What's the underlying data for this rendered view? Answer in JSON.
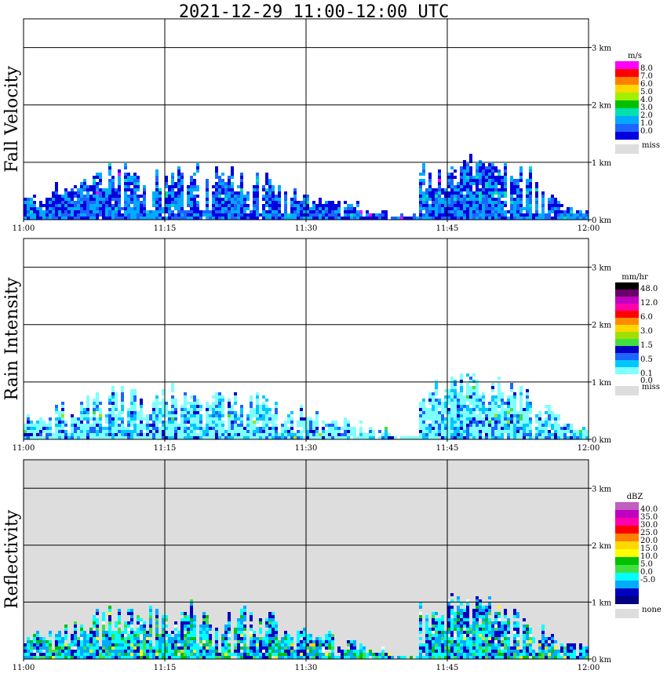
{
  "title": "2021-12-29   11:00-12:00 UTC",
  "chart_data": [
    {
      "type": "heatmap",
      "ylabel": "Fall Velocity",
      "x_ticks": [
        "11:00",
        "11:15",
        "11:30",
        "11:45",
        "12:00"
      ],
      "y_ticks": [
        "0 km",
        "1 km",
        "2 km",
        "3 km"
      ],
      "xlim": [
        "11:00",
        "12:00"
      ],
      "ylim_km": [
        0,
        3.5
      ],
      "grid": true,
      "background": "#ffffff",
      "legend": {
        "unit": "m/s",
        "colors": [
          "#ff00ff",
          "#ff0000",
          "#ff7f00",
          "#ffd700",
          "#a0f000",
          "#00c000",
          "#00e0b0",
          "#00aaff",
          "#1e64ff",
          "#0000e0"
        ],
        "labels": [
          "8.0",
          "7.0",
          "6.0",
          "5.0",
          "4.0",
          "3.0",
          "2.0",
          "1.0",
          "0.0"
        ],
        "miss_label": "miss",
        "miss_color": "#dddddd"
      },
      "echo_top_km": [
        0.45,
        0.6,
        0.8,
        0.9,
        0.85,
        0.95,
        0.95,
        0.85,
        0.75,
        0.55,
        0.45,
        0.35,
        0.2,
        0.1,
        0.95,
        1.05,
        1.0,
        0.9,
        0.6,
        0.3
      ],
      "palette": [
        "#0000e0",
        "#1e64ff",
        "#00aaff",
        "#0000e0",
        "#1e64ff",
        "#00aaff",
        "#00e0b0",
        "#ff00ff"
      ],
      "weights": [
        3,
        3,
        4,
        2,
        2,
        3,
        1,
        0.1
      ]
    },
    {
      "type": "heatmap",
      "ylabel": "Rain Intensity",
      "x_ticks": [
        "11:00",
        "11:15",
        "11:30",
        "11:45",
        "12:00"
      ],
      "y_ticks": [
        "0 km",
        "1 km",
        "2 km",
        "3 km"
      ],
      "xlim": [
        "11:00",
        "12:00"
      ],
      "ylim_km": [
        0,
        3.5
      ],
      "grid": true,
      "background": "#ffffff",
      "legend": {
        "unit": "mm/hr",
        "colors": [
          "#000000",
          "#6a006a",
          "#c000c0",
          "#ff00aa",
          "#ff0000",
          "#ff8c00",
          "#ffd700",
          "#a0e000",
          "#40e040",
          "#0000c0",
          "#1e64ff",
          "#00c8ff",
          "#80ffff",
          "#ffffff"
        ],
        "labels": [
          "48.0",
          "",
          "12.0",
          "",
          "6.0",
          "",
          "3.0",
          "",
          "1.5",
          "",
          "0.5",
          "",
          "0.1",
          "0.0"
        ],
        "miss_label": "miss",
        "miss_color": "#dddddd"
      },
      "echo_top_km": [
        0.45,
        0.6,
        0.8,
        0.9,
        0.85,
        0.95,
        0.95,
        0.85,
        0.75,
        0.55,
        0.45,
        0.35,
        0.2,
        0.1,
        0.95,
        1.05,
        1.0,
        0.9,
        0.6,
        0.3
      ],
      "palette": [
        "#80ffff",
        "#00c8ff",
        "#1e64ff",
        "#0000c0",
        "#80ffff",
        "#40e040",
        "#a0e000"
      ],
      "weights": [
        5,
        3,
        2,
        1.3,
        2,
        0.15,
        0.1
      ]
    },
    {
      "type": "heatmap",
      "ylabel": "Reflectivity",
      "x_ticks": [
        "11:00",
        "11:15",
        "11:30",
        "11:45",
        "12:00"
      ],
      "y_ticks": [
        "0 km",
        "1 km",
        "2 km",
        "3 km"
      ],
      "xlim": [
        "11:00",
        "12:00"
      ],
      "ylim_km": [
        0,
        3.5
      ],
      "grid": true,
      "background": "#dddddd",
      "legend": {
        "unit": "dBZ",
        "colors": [
          "#c060c0",
          "#c000c0",
          "#ff00aa",
          "#ff0000",
          "#ff7f00",
          "#ffd700",
          "#ffff00",
          "#00c000",
          "#40e040",
          "#00ffff",
          "#00aaff",
          "#0000c0",
          "#000080"
        ],
        "labels": [
          "40.0",
          "35.0",
          "30.0",
          "25.0",
          "20.0",
          "15.0",
          "10.0",
          "5.0",
          "0.0",
          "-5.0"
        ],
        "miss_label": "none",
        "miss_color": "#dddddd"
      },
      "echo_top_km": [
        0.45,
        0.6,
        0.8,
        0.9,
        0.85,
        0.95,
        0.95,
        0.85,
        0.75,
        0.55,
        0.45,
        0.35,
        0.2,
        0.1,
        0.95,
        1.05,
        1.0,
        0.9,
        0.6,
        0.3
      ],
      "palette": [
        "#0000c0",
        "#00aaff",
        "#00ffff",
        "#40e040",
        "#00c000",
        "#ffff00",
        "#ffd700",
        "#ffffff"
      ],
      "weights": [
        2,
        3,
        4,
        1.2,
        1,
        0.3,
        0.15,
        0.4
      ]
    }
  ]
}
